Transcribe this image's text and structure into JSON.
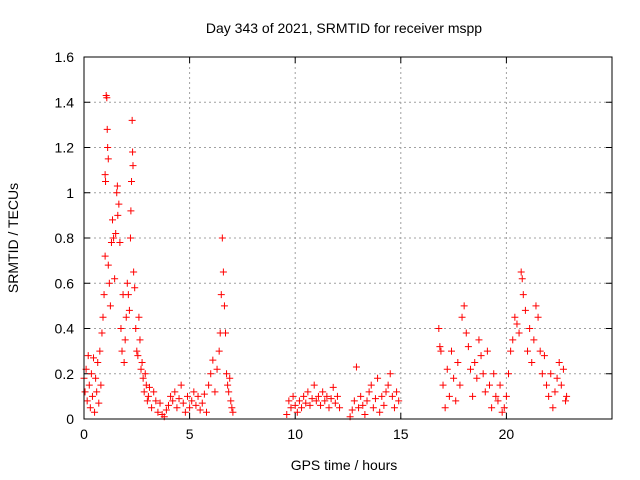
{
  "chart_data": {
    "type": "scatter",
    "title": "Day 343 of 2021, SRMTID for receiver mspp",
    "xlabel": "GPS time / hours",
    "ylabel": "SRMTID / TECUs",
    "xlim": [
      0,
      25
    ],
    "ylim": [
      0,
      1.6
    ],
    "x_ticks": [
      0,
      5,
      10,
      15,
      20
    ],
    "x_tick_labels": [
      "0",
      "5",
      "10",
      "15",
      "20"
    ],
    "y_ticks": [
      0,
      0.2,
      0.4,
      0.6,
      0.8,
      1.0,
      1.2,
      1.4,
      1.6
    ],
    "y_tick_labels": [
      "0",
      "0.2",
      "0.4",
      "0.6",
      "0.8",
      "1",
      "1.2",
      "1.4",
      "1.6"
    ],
    "grid": true,
    "marker": "+",
    "color": "#ff0000",
    "series": [
      {
        "name": "SRMTID",
        "points": [
          [
            0.0,
            0.18
          ],
          [
            0.05,
            0.12
          ],
          [
            0.1,
            0.22
          ],
          [
            0.15,
            0.08
          ],
          [
            0.2,
            0.28
          ],
          [
            0.25,
            0.15
          ],
          [
            0.3,
            0.05
          ],
          [
            0.35,
            0.2
          ],
          [
            0.4,
            0.1
          ],
          [
            0.45,
            0.27
          ],
          [
            0.5,
            0.03
          ],
          [
            0.55,
            0.18
          ],
          [
            0.6,
            0.12
          ],
          [
            0.65,
            0.25
          ],
          [
            0.7,
            0.07
          ],
          [
            0.75,
            0.3
          ],
          [
            0.8,
            0.15
          ],
          [
            0.85,
            0.38
          ],
          [
            0.9,
            0.45
          ],
          [
            0.95,
            0.55
          ],
          [
            1.0,
            0.72
          ],
          [
            1.0,
            1.08
          ],
          [
            1.02,
            1.05
          ],
          [
            1.05,
            1.43
          ],
          [
            1.08,
            1.42
          ],
          [
            1.1,
            1.28
          ],
          [
            1.12,
            1.2
          ],
          [
            1.15,
            1.15
          ],
          [
            1.15,
            0.68
          ],
          [
            1.2,
            0.6
          ],
          [
            1.25,
            0.5
          ],
          [
            1.3,
            0.78
          ],
          [
            1.35,
            0.88
          ],
          [
            1.4,
            0.8
          ],
          [
            1.45,
            0.62
          ],
          [
            1.5,
            0.82
          ],
          [
            1.55,
            1.0
          ],
          [
            1.58,
            1.03
          ],
          [
            1.6,
            0.9
          ],
          [
            1.65,
            0.95
          ],
          [
            1.7,
            0.78
          ],
          [
            1.75,
            0.4
          ],
          [
            1.8,
            0.3
          ],
          [
            1.85,
            0.55
          ],
          [
            1.9,
            0.25
          ],
          [
            1.95,
            0.35
          ],
          [
            2.0,
            0.45
          ],
          [
            2.05,
            0.6
          ],
          [
            2.1,
            0.55
          ],
          [
            2.15,
            0.48
          ],
          [
            2.2,
            0.8
          ],
          [
            2.22,
            0.92
          ],
          [
            2.25,
            1.05
          ],
          [
            2.28,
            1.32
          ],
          [
            2.3,
            1.18
          ],
          [
            2.32,
            1.12
          ],
          [
            2.35,
            0.65
          ],
          [
            2.4,
            0.58
          ],
          [
            2.45,
            0.4
          ],
          [
            2.5,
            0.3
          ],
          [
            2.55,
            0.28
          ],
          [
            2.6,
            0.45
          ],
          [
            2.65,
            0.35
          ],
          [
            2.7,
            0.22
          ],
          [
            2.75,
            0.25
          ],
          [
            2.8,
            0.18
          ],
          [
            2.85,
            0.12
          ],
          [
            2.9,
            0.2
          ],
          [
            2.95,
            0.15
          ],
          [
            3.0,
            0.08
          ],
          [
            3.05,
            0.1
          ],
          [
            3.1,
            0.14
          ],
          [
            3.2,
            0.05
          ],
          [
            3.3,
            0.12
          ],
          [
            3.4,
            0.08
          ],
          [
            3.5,
            0.03
          ],
          [
            3.6,
            0.07
          ],
          [
            3.7,
            0.02
          ],
          [
            3.8,
            0.01
          ],
          [
            3.9,
            0.04
          ],
          [
            4.0,
            0.06
          ],
          [
            4.1,
            0.1
          ],
          [
            4.2,
            0.08
          ],
          [
            4.3,
            0.12
          ],
          [
            4.4,
            0.05
          ],
          [
            4.5,
            0.09
          ],
          [
            4.6,
            0.15
          ],
          [
            4.7,
            0.07
          ],
          [
            4.8,
            0.03
          ],
          [
            4.9,
            0.1
          ],
          [
            5.0,
            0.05
          ],
          [
            5.1,
            0.08
          ],
          [
            5.2,
            0.12
          ],
          [
            5.3,
            0.06
          ],
          [
            5.4,
            0.1
          ],
          [
            5.5,
            0.04
          ],
          [
            5.6,
            0.07
          ],
          [
            5.7,
            0.11
          ],
          [
            5.8,
            0.03
          ],
          [
            5.9,
            0.15
          ],
          [
            6.0,
            0.2
          ],
          [
            6.1,
            0.26
          ],
          [
            6.2,
            0.12
          ],
          [
            6.3,
            0.22
          ],
          [
            6.4,
            0.3
          ],
          [
            6.45,
            0.38
          ],
          [
            6.5,
            0.55
          ],
          [
            6.55,
            0.8
          ],
          [
            6.6,
            0.65
          ],
          [
            6.65,
            0.5
          ],
          [
            6.7,
            0.38
          ],
          [
            6.75,
            0.2
          ],
          [
            6.8,
            0.15
          ],
          [
            6.85,
            0.12
          ],
          [
            6.9,
            0.18
          ],
          [
            6.95,
            0.08
          ],
          [
            7.0,
            0.05
          ],
          [
            7.05,
            0.03
          ],
          [
            9.6,
            0.02
          ],
          [
            9.7,
            0.08
          ],
          [
            9.8,
            0.05
          ],
          [
            9.9,
            0.1
          ],
          [
            10.0,
            0.06
          ],
          [
            10.1,
            0.03
          ],
          [
            10.2,
            0.08
          ],
          [
            10.3,
            0.05
          ],
          [
            10.4,
            0.1
          ],
          [
            10.5,
            0.07
          ],
          [
            10.6,
            0.12
          ],
          [
            10.7,
            0.06
          ],
          [
            10.8,
            0.09
          ],
          [
            10.9,
            0.15
          ],
          [
            11.0,
            0.08
          ],
          [
            11.1,
            0.1
          ],
          [
            11.2,
            0.06
          ],
          [
            11.3,
            0.12
          ],
          [
            11.4,
            0.08
          ],
          [
            11.5,
            0.1
          ],
          [
            11.6,
            0.05
          ],
          [
            11.7,
            0.09
          ],
          [
            11.8,
            0.14
          ],
          [
            11.9,
            0.07
          ],
          [
            12.0,
            0.1
          ],
          [
            12.1,
            0.05
          ],
          [
            12.6,
            0.01
          ],
          [
            12.7,
            0.04
          ],
          [
            12.8,
            0.08
          ],
          [
            12.9,
            0.23
          ],
          [
            13.0,
            0.05
          ],
          [
            13.1,
            0.1
          ],
          [
            13.2,
            0.06
          ],
          [
            13.3,
            0.02
          ],
          [
            13.4,
            0.08
          ],
          [
            13.5,
            0.12
          ],
          [
            13.6,
            0.15
          ],
          [
            13.7,
            0.05
          ],
          [
            13.8,
            0.09
          ],
          [
            13.9,
            0.18
          ],
          [
            14.0,
            0.03
          ],
          [
            14.1,
            0.1
          ],
          [
            14.2,
            0.06
          ],
          [
            14.3,
            0.12
          ],
          [
            14.4,
            0.15
          ],
          [
            14.5,
            0.2
          ],
          [
            14.6,
            0.1
          ],
          [
            14.7,
            0.05
          ],
          [
            14.8,
            0.12
          ],
          [
            14.9,
            0.08
          ],
          [
            16.8,
            0.4
          ],
          [
            16.85,
            0.32
          ],
          [
            16.9,
            0.3
          ],
          [
            17.0,
            0.15
          ],
          [
            17.1,
            0.05
          ],
          [
            17.2,
            0.22
          ],
          [
            17.3,
            0.1
          ],
          [
            17.4,
            0.3
          ],
          [
            17.5,
            0.18
          ],
          [
            17.6,
            0.08
          ],
          [
            17.7,
            0.25
          ],
          [
            17.8,
            0.15
          ],
          [
            17.9,
            0.45
          ],
          [
            18.0,
            0.5
          ],
          [
            18.1,
            0.38
          ],
          [
            18.2,
            0.32
          ],
          [
            18.3,
            0.22
          ],
          [
            18.4,
            0.1
          ],
          [
            18.5,
            0.25
          ],
          [
            18.6,
            0.18
          ],
          [
            18.7,
            0.35
          ],
          [
            18.8,
            0.28
          ],
          [
            18.9,
            0.2
          ],
          [
            19.0,
            0.12
          ],
          [
            19.1,
            0.3
          ],
          [
            19.2,
            0.15
          ],
          [
            19.3,
            0.05
          ],
          [
            19.4,
            0.2
          ],
          [
            19.5,
            0.1
          ],
          [
            19.6,
            0.08
          ],
          [
            19.7,
            0.15
          ],
          [
            19.8,
            0.03
          ],
          [
            19.9,
            0.05
          ],
          [
            20.0,
            0.1
          ],
          [
            20.1,
            0.2
          ],
          [
            20.2,
            0.3
          ],
          [
            20.3,
            0.35
          ],
          [
            20.4,
            0.45
          ],
          [
            20.5,
            0.42
          ],
          [
            20.6,
            0.38
          ],
          [
            20.7,
            0.65
          ],
          [
            20.75,
            0.62
          ],
          [
            20.8,
            0.55
          ],
          [
            20.9,
            0.48
          ],
          [
            21.0,
            0.3
          ],
          [
            21.1,
            0.4
          ],
          [
            21.2,
            0.25
          ],
          [
            21.3,
            0.35
          ],
          [
            21.4,
            0.5
          ],
          [
            21.5,
            0.45
          ],
          [
            21.6,
            0.3
          ],
          [
            21.7,
            0.2
          ],
          [
            21.8,
            0.28
          ],
          [
            21.9,
            0.15
          ],
          [
            22.0,
            0.1
          ],
          [
            22.1,
            0.2
          ],
          [
            22.2,
            0.05
          ],
          [
            22.3,
            0.12
          ],
          [
            22.4,
            0.18
          ],
          [
            22.5,
            0.25
          ],
          [
            22.6,
            0.15
          ],
          [
            22.7,
            0.22
          ],
          [
            22.8,
            0.08
          ],
          [
            22.85,
            0.1
          ]
        ]
      }
    ]
  }
}
